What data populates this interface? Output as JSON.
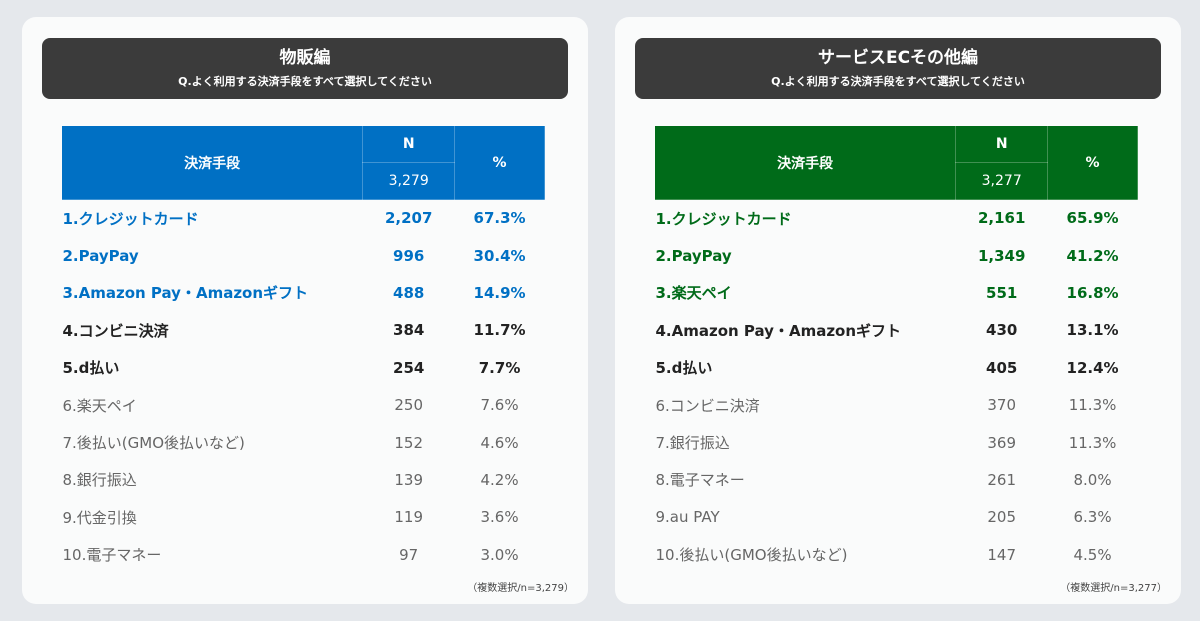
{
  "panels": [
    {
      "title": "物販編",
      "question": "Q.よく利用する決済手段をすべて選択してください",
      "accent": "#0070c4",
      "header": {
        "method": "決済手段",
        "n": "N",
        "n_total": "3,279",
        "pct": "%"
      },
      "rows": [
        {
          "label": "1.クレジットカード",
          "n": "2,207",
          "pct": "67.3%",
          "style": "top"
        },
        {
          "label": "2.PayPay",
          "n": "996",
          "pct": "30.4%",
          "style": "top"
        },
        {
          "label": "3.Amazon Pay・Amazonギフト",
          "n": "488",
          "pct": "14.9%",
          "style": "top"
        },
        {
          "label": "4.コンビニ決済",
          "n": "384",
          "pct": "11.7%",
          "style": "bold"
        },
        {
          "label": "5.d払い",
          "n": "254",
          "pct": "7.7%",
          "style": "bold"
        },
        {
          "label": "6.楽天ペイ",
          "n": "250",
          "pct": "7.6%",
          "style": "plain"
        },
        {
          "label": "7.後払い(GMO後払いなど)",
          "n": "152",
          "pct": "4.6%",
          "style": "plain"
        },
        {
          "label": "8.銀行振込",
          "n": "139",
          "pct": "4.2%",
          "style": "plain"
        },
        {
          "label": "9.代金引換",
          "n": "119",
          "pct": "3.6%",
          "style": "plain"
        },
        {
          "label": "10.電子マネー",
          "n": "97",
          "pct": "3.0%",
          "style": "plain"
        }
      ],
      "note": "（複数選択/n=3,279）"
    },
    {
      "title": "サービスECその他編",
      "question": "Q.よく利用する決済手段をすべて選択してください",
      "accent": "#006b19",
      "header": {
        "method": "決済手段",
        "n": "N",
        "n_total": "3,277",
        "pct": "%"
      },
      "rows": [
        {
          "label": "1.クレジットカード",
          "n": "2,161",
          "pct": "65.9%",
          "style": "top"
        },
        {
          "label": "2.PayPay",
          "n": "1,349",
          "pct": "41.2%",
          "style": "top"
        },
        {
          "label": "3.楽天ペイ",
          "n": "551",
          "pct": "16.8%",
          "style": "top"
        },
        {
          "label": "4.Amazon Pay・Amazonギフト",
          "n": "430",
          "pct": "13.1%",
          "style": "bold"
        },
        {
          "label": "5.d払い",
          "n": "405",
          "pct": "12.4%",
          "style": "bold"
        },
        {
          "label": "6.コンビニ決済",
          "n": "370",
          "pct": "11.3%",
          "style": "plain"
        },
        {
          "label": "7.銀行振込",
          "n": "369",
          "pct": "11.3%",
          "style": "plain"
        },
        {
          "label": "8.電子マネー",
          "n": "261",
          "pct": "8.0%",
          "style": "plain"
        },
        {
          "label": "9.au PAY",
          "n": "205",
          "pct": "6.3%",
          "style": "plain"
        },
        {
          "label": "10.後払い(GMO後払いなど)",
          "n": "147",
          "pct": "4.5%",
          "style": "plain"
        }
      ],
      "note": "（複数選択/n=3,277）"
    }
  ]
}
